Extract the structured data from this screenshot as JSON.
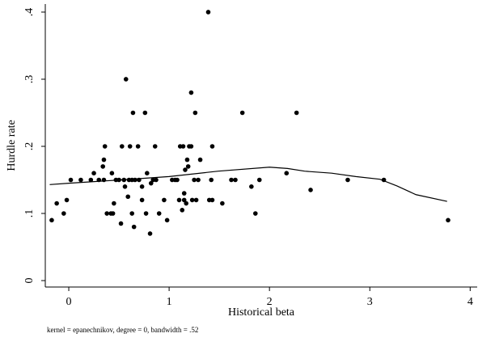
{
  "chart_data": {
    "type": "scatter",
    "x_label": "Historical beta",
    "y_label": "Hurdle rate",
    "note": "kernel = epanechnikov, degree = 0, bandwidth = .52",
    "xlim": [
      -0.234,
      4.07
    ],
    "ylim": [
      -0.0096,
      0.412
    ],
    "xticks": [
      0,
      1,
      2,
      3,
      4
    ],
    "yticks": [
      {
        "value": 0,
        "label": "0"
      },
      {
        "value": 0.1,
        "label": ".1"
      },
      {
        "value": 0.2,
        "label": ".2"
      },
      {
        "value": 0.3,
        "label": ".3"
      },
      {
        "value": 0.4,
        "label": ".4"
      }
    ],
    "grid": false,
    "series": [
      {
        "type": "scatter",
        "color": "#000000",
        "x": [
          -0.17,
          -0.12,
          -0.05,
          -0.02,
          0.02,
          0.12,
          0.22,
          0.25,
          0.3,
          0.34,
          0.35,
          0.36,
          0.35,
          0.38,
          0.42,
          0.44,
          0.43,
          0.45,
          0.47,
          0.5,
          0.52,
          0.53,
          0.55,
          0.56,
          0.57,
          0.59,
          0.6,
          0.61,
          0.63,
          0.64,
          0.65,
          0.63,
          0.66,
          0.69,
          0.7,
          0.73,
          0.73,
          0.76,
          0.77,
          0.78,
          0.81,
          0.82,
          0.84,
          0.86,
          0.87,
          0.9,
          0.95,
          0.98,
          1.03,
          1.06,
          1.08,
          1.1,
          1.11,
          1.13,
          1.14,
          1.15,
          1.15,
          1.16,
          1.17,
          1.18,
          1.19,
          1.2,
          1.22,
          1.22,
          1.23,
          1.25,
          1.26,
          1.27,
          1.29,
          1.31,
          1.39,
          1.4,
          1.42,
          1.43,
          1.43,
          1.53,
          1.62,
          1.66,
          1.73,
          1.82,
          1.86,
          1.9,
          2.17,
          2.27,
          2.41,
          2.78,
          3.14,
          3.78
        ],
        "values": [
          0.09,
          0.115,
          0.1,
          0.12,
          0.15,
          0.15,
          0.15,
          0.16,
          0.15,
          0.17,
          0.18,
          0.2,
          0.15,
          0.1,
          0.1,
          0.1,
          0.16,
          0.115,
          0.15,
          0.15,
          0.085,
          0.2,
          0.15,
          0.14,
          0.3,
          0.125,
          0.15,
          0.2,
          0.1,
          0.25,
          0.08,
          0.15,
          0.15,
          0.2,
          0.15,
          0.14,
          0.12,
          0.25,
          0.1,
          0.16,
          0.07,
          0.145,
          0.15,
          0.2,
          0.15,
          0.1,
          0.12,
          0.09,
          0.15,
          0.15,
          0.15,
          0.12,
          0.2,
          0.105,
          0.2,
          0.12,
          0.13,
          0.165,
          0.115,
          0.18,
          0.17,
          0.2,
          0.2,
          0.28,
          0.12,
          0.15,
          0.25,
          0.12,
          0.15,
          0.18,
          0.4,
          0.12,
          0.15,
          0.2,
          0.12,
          0.115,
          0.15,
          0.15,
          0.25,
          0.14,
          0.1,
          0.15,
          0.16,
          0.25,
          0.135,
          0.15,
          0.15,
          0.09
        ]
      },
      {
        "type": "line",
        "color": "#000000",
        "x": [
          -0.19,
          0,
          0.52,
          1,
          1.49,
          2,
          2.18,
          2.35,
          2.62,
          2.86,
          3.1,
          3.27,
          3.46,
          3.77
        ],
        "values": [
          0.143,
          0.145,
          0.15,
          0.155,
          0.163,
          0.169,
          0.167,
          0.163,
          0.16,
          0.155,
          0.151,
          0.141,
          0.128,
          0.118
        ]
      }
    ]
  }
}
